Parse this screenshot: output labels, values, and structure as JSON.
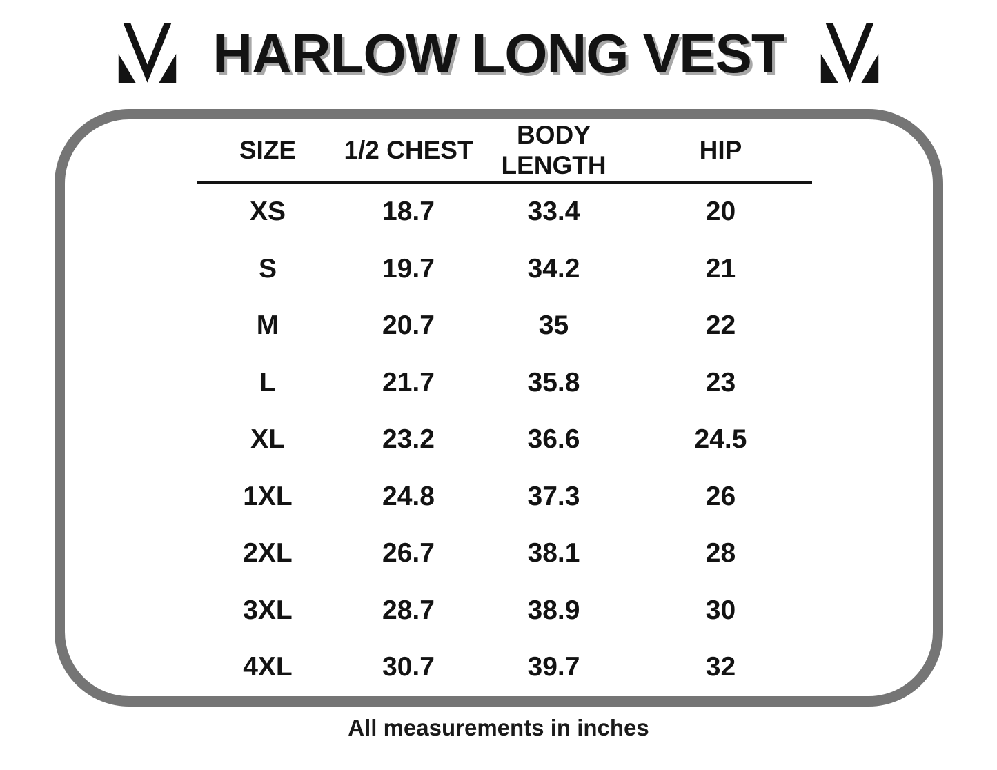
{
  "title": "HARLOW LONG VEST",
  "logos": {
    "left": "brand-m-logo",
    "right": "brand-m-logo"
  },
  "table": {
    "headers": [
      "SIZE",
      "1/2 CHEST",
      "BODY LENGTH",
      "HIP"
    ],
    "rows": [
      [
        "XS",
        "18.7",
        "33.4",
        "20"
      ],
      [
        "S",
        "19.7",
        "34.2",
        "21"
      ],
      [
        "M",
        "20.7",
        "35",
        "22"
      ],
      [
        "L",
        "21.7",
        "35.8",
        "23"
      ],
      [
        "XL",
        "23.2",
        "36.6",
        "24.5"
      ],
      [
        "1XL",
        "24.8",
        "37.3",
        "26"
      ],
      [
        "2XL",
        "26.7",
        "38.1",
        "28"
      ],
      [
        "3XL",
        "28.7",
        "38.9",
        "30"
      ],
      [
        "4XL",
        "30.7",
        "39.7",
        "32"
      ]
    ]
  },
  "footer": {
    "note": "All measurements in inches"
  },
  "colors": {
    "text": "#131313",
    "title_shadow": "#a8a8a8",
    "panel_border": "#757575",
    "header_rule": "#131313",
    "background": "#ffffff"
  }
}
